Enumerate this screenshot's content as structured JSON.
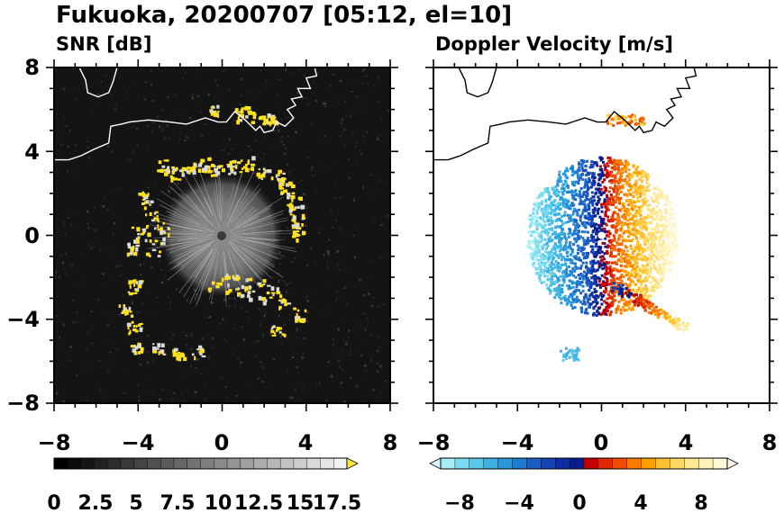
{
  "figure": {
    "title": "Fukuoka, 20200707 [05:12, el=10]"
  },
  "chart_data": [
    {
      "type": "heatmap",
      "title": "SNR [dB]",
      "xlabel": "",
      "ylabel": "",
      "xlim": [
        -8,
        8
      ],
      "ylim": [
        -8,
        8
      ],
      "xticks": [
        "−8",
        "−4",
        "0",
        "4",
        "8"
      ],
      "yticks": [
        "8",
        "4",
        "0",
        "−4",
        "−8"
      ],
      "grid": false,
      "background": "#141414",
      "colorbar": {
        "labels": [
          "0",
          "2.5",
          "5",
          "7.5",
          "10",
          "12.5",
          "15",
          "17.5"
        ],
        "range": [
          0,
          19
        ],
        "extend": "max",
        "colors": [
          "#000000",
          "#0b0b0b",
          "#161616",
          "#222222",
          "#2d2d2d",
          "#393939",
          "#444444",
          "#505050",
          "#5b5b5b",
          "#676767",
          "#727272",
          "#7e7e7e",
          "#898989",
          "#959595",
          "#a0a0a0",
          "#acacac",
          "#b7b7b7",
          "#c3c3c3",
          "#cecece",
          "#dadada",
          "#e5e5e5",
          "#f1f1f1"
        ],
        "extend_color": "#ffeb3b"
      }
    },
    {
      "type": "heatmap",
      "title": "Doppler Velocity [m/s]",
      "xlabel": "",
      "ylabel": "",
      "xlim": [
        -8,
        8
      ],
      "ylim": [
        -8,
        8
      ],
      "xticks": [
        "−8",
        "−4",
        "0",
        "4",
        "8"
      ],
      "yticks": [],
      "grid": false,
      "background": "#ffffff",
      "colorbar": {
        "labels": [
          "−8",
          "−4",
          "0",
          "4",
          "8"
        ],
        "range": [
          -10,
          10
        ],
        "extend": "both",
        "colors": [
          "#a6eef8",
          "#7ddbf0",
          "#5ac8ea",
          "#3cb2e4",
          "#2a97dc",
          "#1f7bd2",
          "#1a5ec6",
          "#1444b6",
          "#0d2ea2",
          "#081c8c",
          "#c40000",
          "#e02a00",
          "#f04d00",
          "#f87a00",
          "#ffa000",
          "#ffc22e",
          "#ffd966",
          "#ffe893",
          "#fff2b8",
          "#fff9d8"
        ],
        "extend_low": "#d8f8fc",
        "extend_high": "#fffbe8"
      }
    }
  ]
}
